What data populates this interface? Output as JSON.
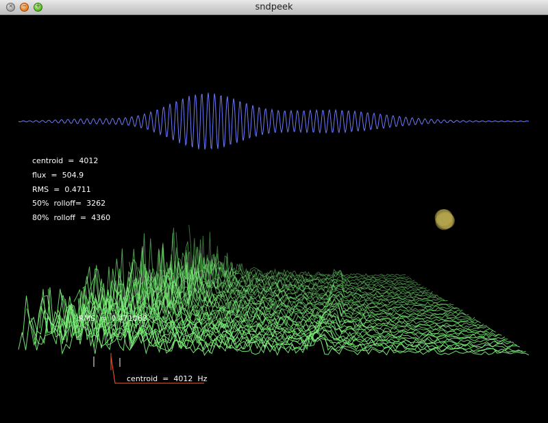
{
  "window": {
    "title": "sndpeek"
  },
  "window_controls": [
    {
      "name": "close-button",
      "glyph": "×"
    },
    {
      "name": "minimize-button",
      "glyph": "−"
    },
    {
      "name": "maximize-button",
      "glyph": "+"
    }
  ],
  "features": [
    {
      "label": "centroid  =  4012"
    },
    {
      "label": "flux  =  504.9"
    },
    {
      "label": "RMS  =  0.4711"
    },
    {
      "label": "50%  rolloff=  3262"
    },
    {
      "label": "80%  rolloff  =  4360"
    }
  ],
  "overlay": {
    "rms_label": "RMS  =  0.471068",
    "centroid_label": "centroid  =  4012  Hz"
  },
  "colors": {
    "waveform": "#6f7bff",
    "spectrum": "#7cf07a",
    "centroid_marker": "#ff5a2a",
    "blob": "#b6a64e"
  }
}
